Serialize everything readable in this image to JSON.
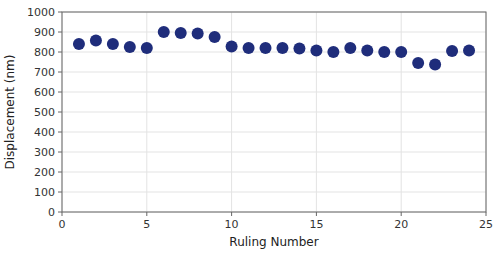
{
  "chart_data": {
    "type": "scatter",
    "x": [
      1,
      2,
      3,
      4,
      5,
      6,
      7,
      8,
      9,
      10,
      11,
      12,
      13,
      14,
      15,
      16,
      17,
      18,
      19,
      20,
      21,
      22,
      23,
      24
    ],
    "values": [
      840,
      858,
      840,
      825,
      820,
      900,
      895,
      893,
      875,
      828,
      820,
      820,
      820,
      818,
      808,
      800,
      820,
      808,
      800,
      800,
      745,
      738,
      805,
      808
    ],
    "color": "#1f2d7b",
    "marker": "circle",
    "xlabel": "Ruling Number",
    "ylabel": "Displacement (nm)",
    "xlim": [
      0,
      25
    ],
    "ylim": [
      0,
      1000
    ],
    "xticks": [
      0,
      5,
      10,
      15,
      20,
      25
    ],
    "yticks": [
      0,
      100,
      200,
      300,
      400,
      500,
      600,
      700,
      800,
      900,
      1000
    ],
    "grid": true
  }
}
